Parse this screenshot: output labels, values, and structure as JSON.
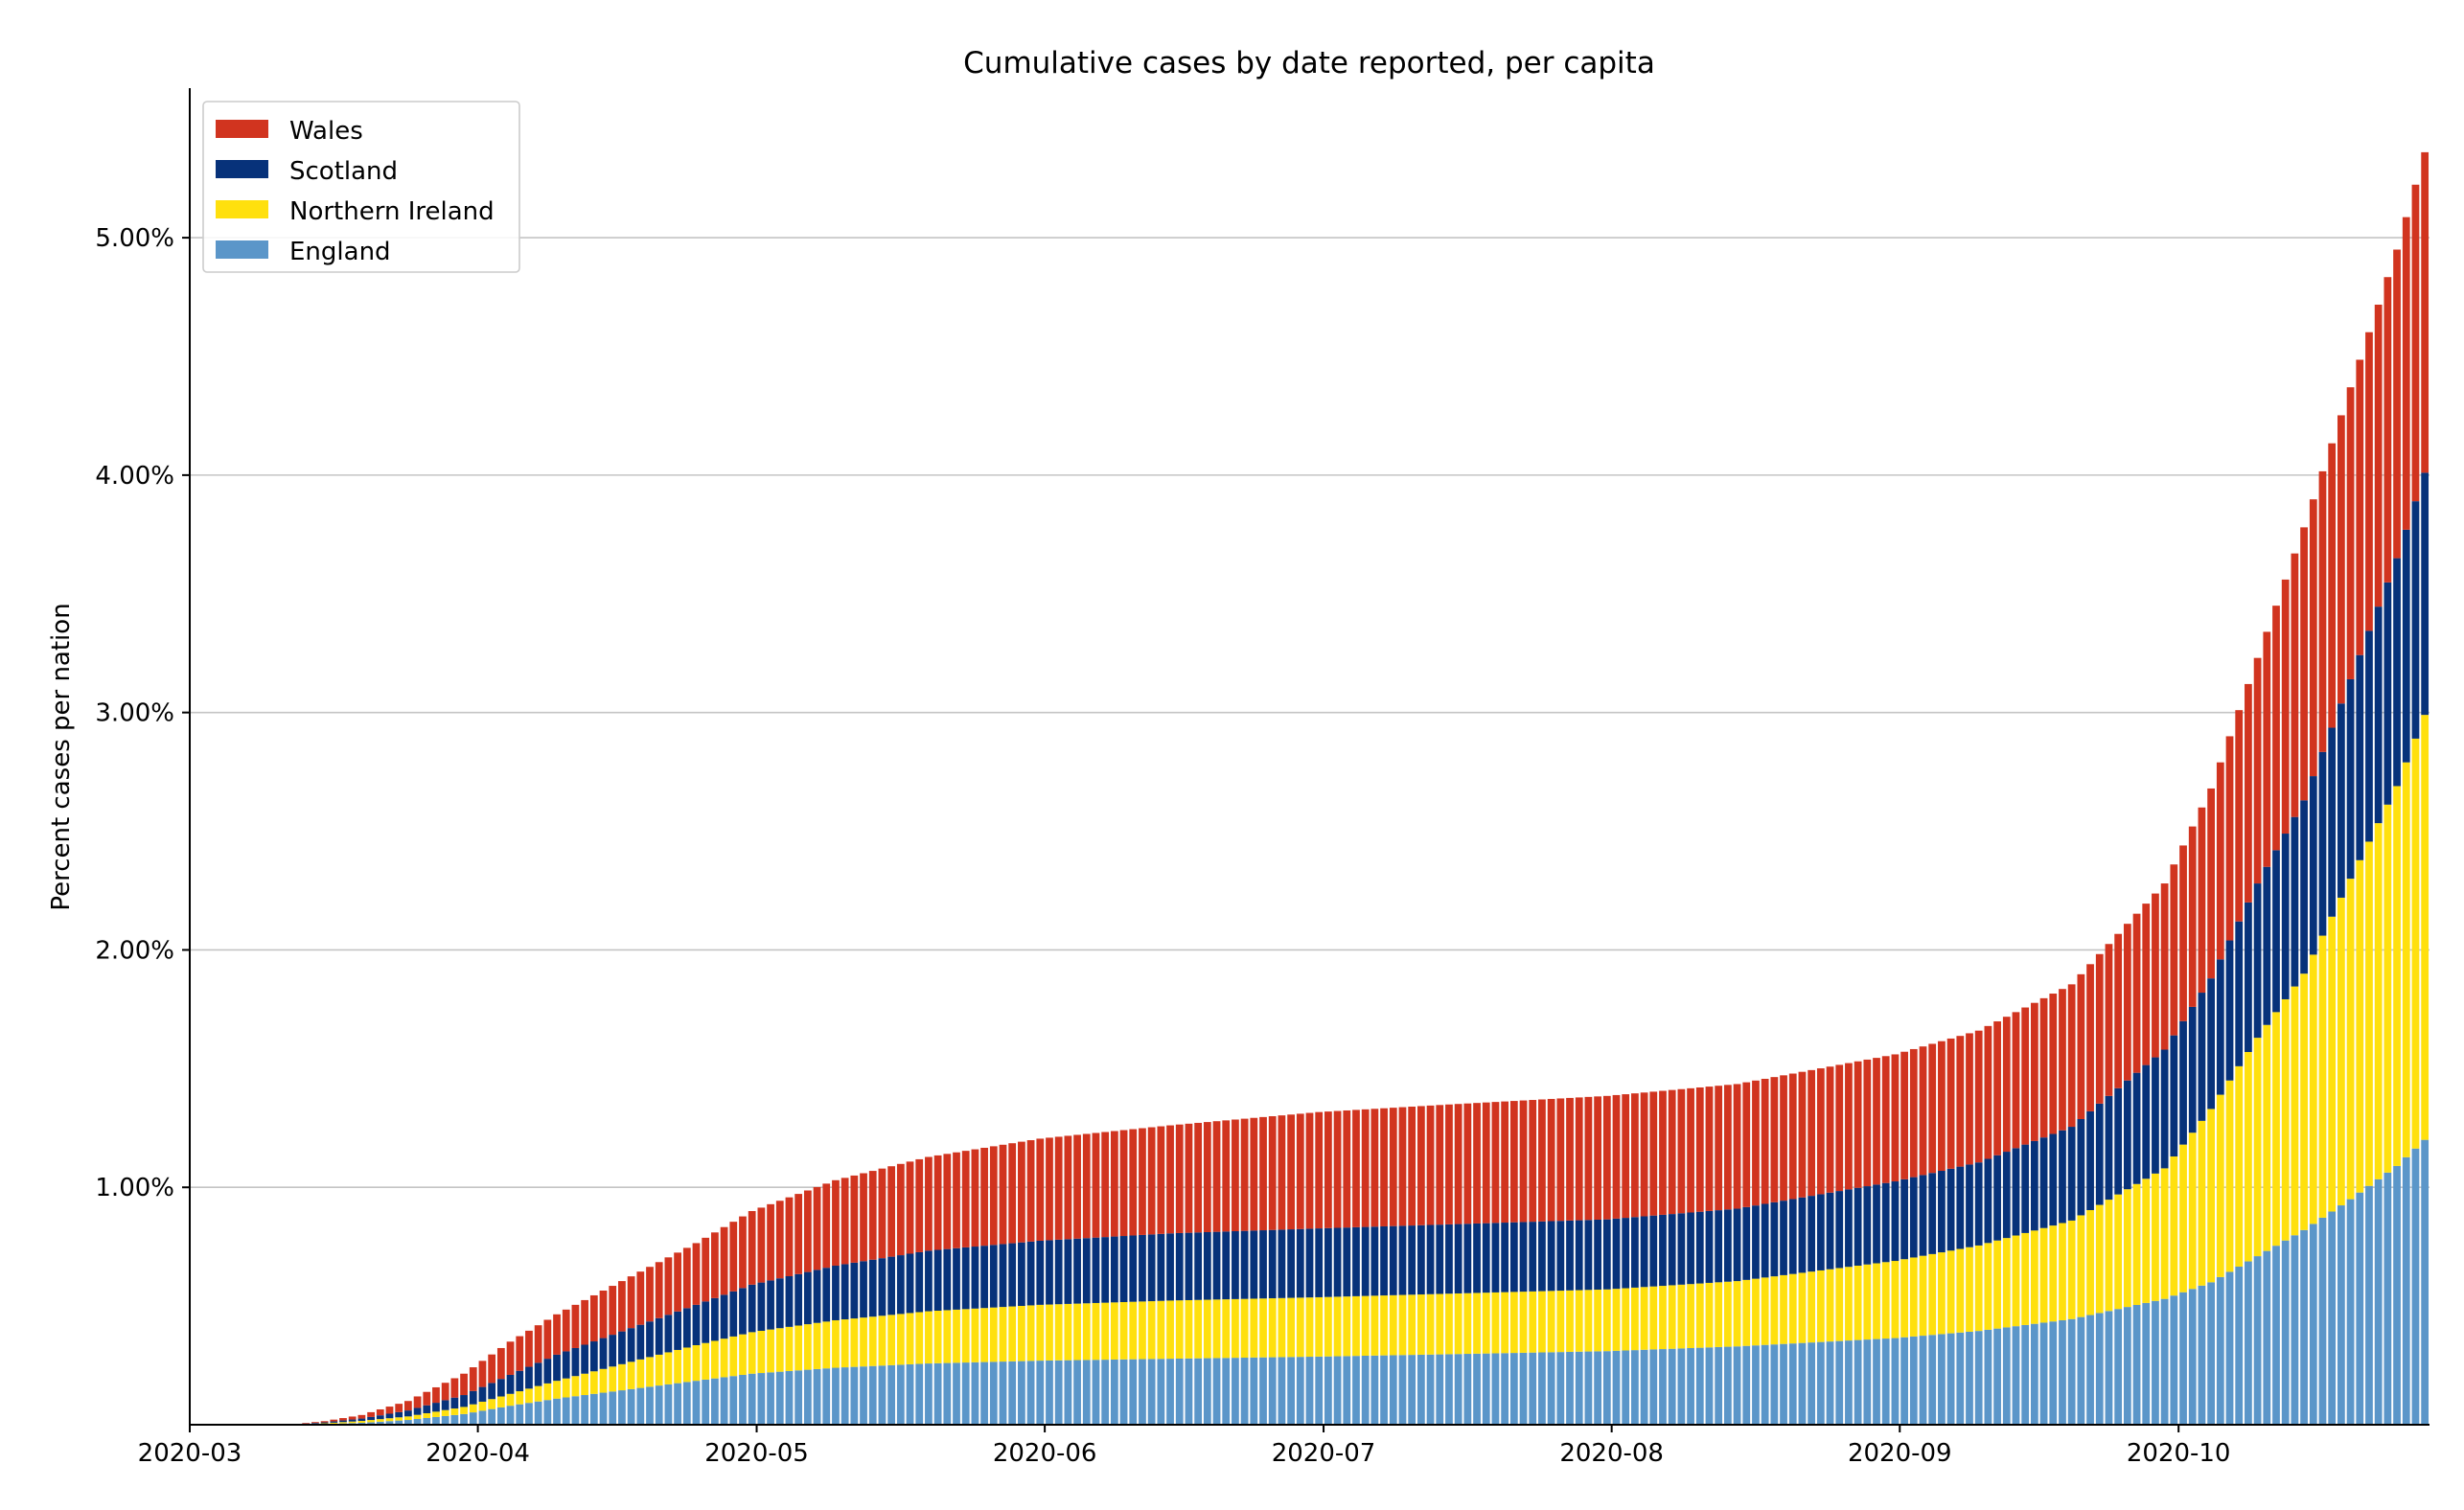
{
  "chart_data": {
    "type": "bar",
    "stacked": true,
    "title": "Cumulative cases by date reported, per capita",
    "xlabel": "",
    "ylabel": "Percent cases per nation",
    "x_start": "2020-03-01",
    "x_end": "2020-10-28",
    "xlim": [
      "2020-03-01",
      "2020-10-28"
    ],
    "ylim": [
      0,
      5.63
    ],
    "yticks": [
      1.0,
      2.0,
      3.0,
      4.0,
      5.0
    ],
    "ytick_labels": [
      "1.00%",
      "2.00%",
      "3.00%",
      "4.00%",
      "5.00%"
    ],
    "xticks": [
      "2020-03-01",
      "2020-04-01",
      "2020-05-01",
      "2020-06-01",
      "2020-07-01",
      "2020-08-01",
      "2020-09-01",
      "2020-10-01"
    ],
    "xtick_labels": [
      "2020-03",
      "2020-04",
      "2020-05",
      "2020-06",
      "2020-07",
      "2020-08",
      "2020-09",
      "2020-10"
    ],
    "grid": "horizontal",
    "legend_position": "top-left",
    "legend_order": [
      "Wales",
      "Scotland",
      "Northern Ireland",
      "England"
    ],
    "series": [
      {
        "name": "England",
        "color": "#5b96c9",
        "keypoints": [
          [
            "2020-03-01",
            0
          ],
          [
            "2020-03-12",
            0
          ],
          [
            "2020-03-16",
            0.003
          ],
          [
            "2020-03-20",
            0.008
          ],
          [
            "2020-03-25",
            0.02
          ],
          [
            "2020-03-31",
            0.045
          ],
          [
            "2020-04-05",
            0.08
          ],
          [
            "2020-04-10",
            0.11
          ],
          [
            "2020-04-15",
            0.135
          ],
          [
            "2020-04-20",
            0.16
          ],
          [
            "2020-04-25",
            0.185
          ],
          [
            "2020-05-01",
            0.215
          ],
          [
            "2020-05-10",
            0.24
          ],
          [
            "2020-05-20",
            0.258
          ],
          [
            "2020-06-01",
            0.27
          ],
          [
            "2020-06-15",
            0.278
          ],
          [
            "2020-07-01",
            0.287
          ],
          [
            "2020-07-15",
            0.297
          ],
          [
            "2020-08-01",
            0.31
          ],
          [
            "2020-08-15",
            0.33
          ],
          [
            "2020-09-01",
            0.365
          ],
          [
            "2020-09-10",
            0.395
          ],
          [
            "2020-09-20",
            0.445
          ],
          [
            "2020-09-30",
            0.53
          ],
          [
            "2020-10-05",
            0.6
          ],
          [
            "2020-10-10",
            0.71
          ],
          [
            "2020-10-15",
            0.82
          ],
          [
            "2020-10-20",
            0.95
          ],
          [
            "2020-10-25",
            1.09
          ],
          [
            "2020-10-28",
            1.2
          ]
        ]
      },
      {
        "name": "Northern Ireland",
        "color": "#ffe00e",
        "keypoints": [
          [
            "2020-03-01",
            0
          ],
          [
            "2020-03-12",
            0
          ],
          [
            "2020-03-16",
            0.003
          ],
          [
            "2020-03-20",
            0.008
          ],
          [
            "2020-03-25",
            0.015
          ],
          [
            "2020-03-31",
            0.03
          ],
          [
            "2020-04-05",
            0.05
          ],
          [
            "2020-04-10",
            0.075
          ],
          [
            "2020-04-15",
            0.1
          ],
          [
            "2020-04-20",
            0.125
          ],
          [
            "2020-04-25",
            0.15
          ],
          [
            "2020-05-01",
            0.175
          ],
          [
            "2020-05-10",
            0.2
          ],
          [
            "2020-05-20",
            0.22
          ],
          [
            "2020-06-01",
            0.235
          ],
          [
            "2020-06-15",
            0.245
          ],
          [
            "2020-07-01",
            0.25
          ],
          [
            "2020-07-15",
            0.255
          ],
          [
            "2020-08-01",
            0.26
          ],
          [
            "2020-08-15",
            0.275
          ],
          [
            "2020-09-01",
            0.325
          ],
          [
            "2020-09-10",
            0.36
          ],
          [
            "2020-09-20",
            0.415
          ],
          [
            "2020-09-30",
            0.55
          ],
          [
            "2020-10-05",
            0.73
          ],
          [
            "2020-10-10",
            0.92
          ],
          [
            "2020-10-15",
            1.08
          ],
          [
            "2020-10-20",
            1.35
          ],
          [
            "2020-10-25",
            1.6
          ],
          [
            "2020-10-28",
            1.79
          ]
        ]
      },
      {
        "name": "Scotland",
        "color": "#07327a",
        "keypoints": [
          [
            "2020-03-01",
            0
          ],
          [
            "2020-03-12",
            0
          ],
          [
            "2020-03-16",
            0.004
          ],
          [
            "2020-03-20",
            0.01
          ],
          [
            "2020-03-25",
            0.025
          ],
          [
            "2020-03-31",
            0.05
          ],
          [
            "2020-04-05",
            0.08
          ],
          [
            "2020-04-10",
            0.11
          ],
          [
            "2020-04-15",
            0.13
          ],
          [
            "2020-04-20",
            0.15
          ],
          [
            "2020-04-25",
            0.17
          ],
          [
            "2020-05-01",
            0.2
          ],
          [
            "2020-05-10",
            0.23
          ],
          [
            "2020-05-20",
            0.255
          ],
          [
            "2020-06-01",
            0.27
          ],
          [
            "2020-06-15",
            0.283
          ],
          [
            "2020-07-01",
            0.29
          ],
          [
            "2020-07-15",
            0.292
          ],
          [
            "2020-08-01",
            0.295
          ],
          [
            "2020-08-15",
            0.305
          ],
          [
            "2020-09-01",
            0.335
          ],
          [
            "2020-09-10",
            0.35
          ],
          [
            "2020-09-20",
            0.395
          ],
          [
            "2020-09-30",
            0.5
          ],
          [
            "2020-10-05",
            0.55
          ],
          [
            "2020-10-10",
            0.65
          ],
          [
            "2020-10-15",
            0.73
          ],
          [
            "2020-10-20",
            0.84
          ],
          [
            "2020-10-25",
            0.96
          ],
          [
            "2020-10-28",
            1.02
          ]
        ]
      },
      {
        "name": "Wales",
        "color": "#d1341f",
        "keypoints": [
          [
            "2020-03-01",
            0
          ],
          [
            "2020-03-12",
            0
          ],
          [
            "2020-03-16",
            0.005
          ],
          [
            "2020-03-20",
            0.015
          ],
          [
            "2020-03-25",
            0.04
          ],
          [
            "2020-03-31",
            0.09
          ],
          [
            "2020-04-05",
            0.14
          ],
          [
            "2020-04-10",
            0.17
          ],
          [
            "2020-04-15",
            0.2
          ],
          [
            "2020-04-20",
            0.23
          ],
          [
            "2020-04-25",
            0.26
          ],
          [
            "2020-05-01",
            0.31
          ],
          [
            "2020-05-10",
            0.36
          ],
          [
            "2020-05-20",
            0.395
          ],
          [
            "2020-06-01",
            0.43
          ],
          [
            "2020-06-15",
            0.455
          ],
          [
            "2020-07-01",
            0.49
          ],
          [
            "2020-07-15",
            0.505
          ],
          [
            "2020-08-01",
            0.52
          ],
          [
            "2020-08-15",
            0.525
          ],
          [
            "2020-09-01",
            0.535
          ],
          [
            "2020-09-10",
            0.555
          ],
          [
            "2020-09-20",
            0.6
          ],
          [
            "2020-09-30",
            0.7
          ],
          [
            "2020-10-05",
            0.8
          ],
          [
            "2020-10-10",
            0.95
          ],
          [
            "2020-10-15",
            1.15
          ],
          [
            "2020-10-20",
            1.23
          ],
          [
            "2020-10-25",
            1.3
          ],
          [
            "2020-10-28",
            1.35
          ]
        ]
      }
    ]
  }
}
